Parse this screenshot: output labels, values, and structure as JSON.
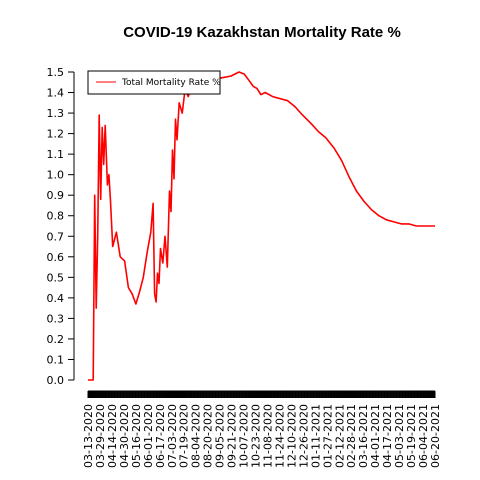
{
  "chart_data": {
    "type": "line",
    "title": "COVID-19 Kazakhstan Mortality Rate %",
    "xlabel": "",
    "ylabel": "",
    "ylim": [
      0,
      1.5
    ],
    "y_ticks": [
      "0.0",
      "0.1",
      "0.2",
      "0.3",
      "0.4",
      "0.5",
      "0.6",
      "0.7",
      "0.8",
      "0.9",
      "1.0",
      "1.1",
      "1.2",
      "1.3",
      "1.4",
      "1.5"
    ],
    "x_range": [
      "2020-03-13",
      "2021-06-20"
    ],
    "x_tick_labels": [
      "03-13-2020",
      "03-29-2020",
      "04-14-2020",
      "04-30-2020",
      "05-16-2020",
      "06-01-2020",
      "06-17-2020",
      "07-03-2020",
      "07-19-2020",
      "08-04-2020",
      "08-20-2020",
      "09-05-2020",
      "09-21-2020",
      "10-07-2020",
      "10-23-2020",
      "11-08-2020",
      "11-24-2020",
      "12-10-2020",
      "12-26-2020",
      "01-11-2021",
      "01-27-2021",
      "02-12-2021",
      "02-28-2021",
      "03-16-2021",
      "04-01-2021",
      "04-17-2021",
      "05-03-2021",
      "05-19-2021",
      "06-04-2021",
      "06-20-2021"
    ],
    "legend": {
      "position": "top-left",
      "entries": [
        {
          "label": "Total Mortality Rate %",
          "color": "#ff0000"
        }
      ]
    },
    "grid": false,
    "series": [
      {
        "name": "Total Mortality Rate %",
        "color": "#ff0000",
        "points": [
          [
            "2020-03-13",
            0.0
          ],
          [
            "2020-03-20",
            0.0
          ],
          [
            "2020-03-22",
            0.9
          ],
          [
            "2020-03-24",
            0.35
          ],
          [
            "2020-03-26",
            0.7
          ],
          [
            "2020-03-28",
            1.29
          ],
          [
            "2020-03-30",
            0.88
          ],
          [
            "2020-04-01",
            1.23
          ],
          [
            "2020-04-03",
            1.05
          ],
          [
            "2020-04-05",
            1.24
          ],
          [
            "2020-04-08",
            0.95
          ],
          [
            "2020-04-10",
            1.0
          ],
          [
            "2020-04-12",
            0.88
          ],
          [
            "2020-04-15",
            0.65
          ],
          [
            "2020-04-20",
            0.72
          ],
          [
            "2020-04-25",
            0.6
          ],
          [
            "2020-05-01",
            0.58
          ],
          [
            "2020-05-06",
            0.45
          ],
          [
            "2020-05-11",
            0.42
          ],
          [
            "2020-05-16",
            0.37
          ],
          [
            "2020-05-21",
            0.43
          ],
          [
            "2020-05-26",
            0.5
          ],
          [
            "2020-05-31",
            0.62
          ],
          [
            "2020-06-05",
            0.72
          ],
          [
            "2020-06-08",
            0.86
          ],
          [
            "2020-06-10",
            0.42
          ],
          [
            "2020-06-12",
            0.38
          ],
          [
            "2020-06-14",
            0.52
          ],
          [
            "2020-06-16",
            0.47
          ],
          [
            "2020-06-18",
            0.64
          ],
          [
            "2020-06-21",
            0.57
          ],
          [
            "2020-06-24",
            0.7
          ],
          [
            "2020-06-27",
            0.55
          ],
          [
            "2020-06-30",
            0.92
          ],
          [
            "2020-07-02",
            0.82
          ],
          [
            "2020-07-04",
            1.12
          ],
          [
            "2020-07-06",
            0.98
          ],
          [
            "2020-07-08",
            1.27
          ],
          [
            "2020-07-10",
            1.17
          ],
          [
            "2020-07-13",
            1.35
          ],
          [
            "2020-07-17",
            1.3
          ],
          [
            "2020-07-21",
            1.42
          ],
          [
            "2020-07-25",
            1.38
          ],
          [
            "2020-08-01",
            1.45
          ],
          [
            "2020-08-10",
            1.44
          ],
          [
            "2020-08-20",
            1.47
          ],
          [
            "2020-09-05",
            1.47
          ],
          [
            "2020-09-20",
            1.48
          ],
          [
            "2020-10-01",
            1.5
          ],
          [
            "2020-10-08",
            1.49
          ],
          [
            "2020-10-14",
            1.46
          ],
          [
            "2020-10-20",
            1.43
          ],
          [
            "2020-10-25",
            1.42
          ],
          [
            "2020-10-30",
            1.39
          ],
          [
            "2020-11-05",
            1.4
          ],
          [
            "2020-11-15",
            1.38
          ],
          [
            "2020-11-25",
            1.37
          ],
          [
            "2020-12-05",
            1.36
          ],
          [
            "2020-12-15",
            1.33
          ],
          [
            "2020-12-25",
            1.29
          ],
          [
            "2021-01-05",
            1.25
          ],
          [
            "2021-01-15",
            1.21
          ],
          [
            "2021-01-25",
            1.18
          ],
          [
            "2021-02-05",
            1.13
          ],
          [
            "2021-02-15",
            1.07
          ],
          [
            "2021-02-25",
            0.99
          ],
          [
            "2021-03-07",
            0.92
          ],
          [
            "2021-03-17",
            0.87
          ],
          [
            "2021-03-27",
            0.83
          ],
          [
            "2021-04-06",
            0.8
          ],
          [
            "2021-04-16",
            0.78
          ],
          [
            "2021-04-26",
            0.77
          ],
          [
            "2021-05-06",
            0.76
          ],
          [
            "2021-05-16",
            0.76
          ],
          [
            "2021-05-26",
            0.75
          ],
          [
            "2021-06-05",
            0.75
          ],
          [
            "2021-06-20",
            0.75
          ]
        ]
      }
    ]
  }
}
